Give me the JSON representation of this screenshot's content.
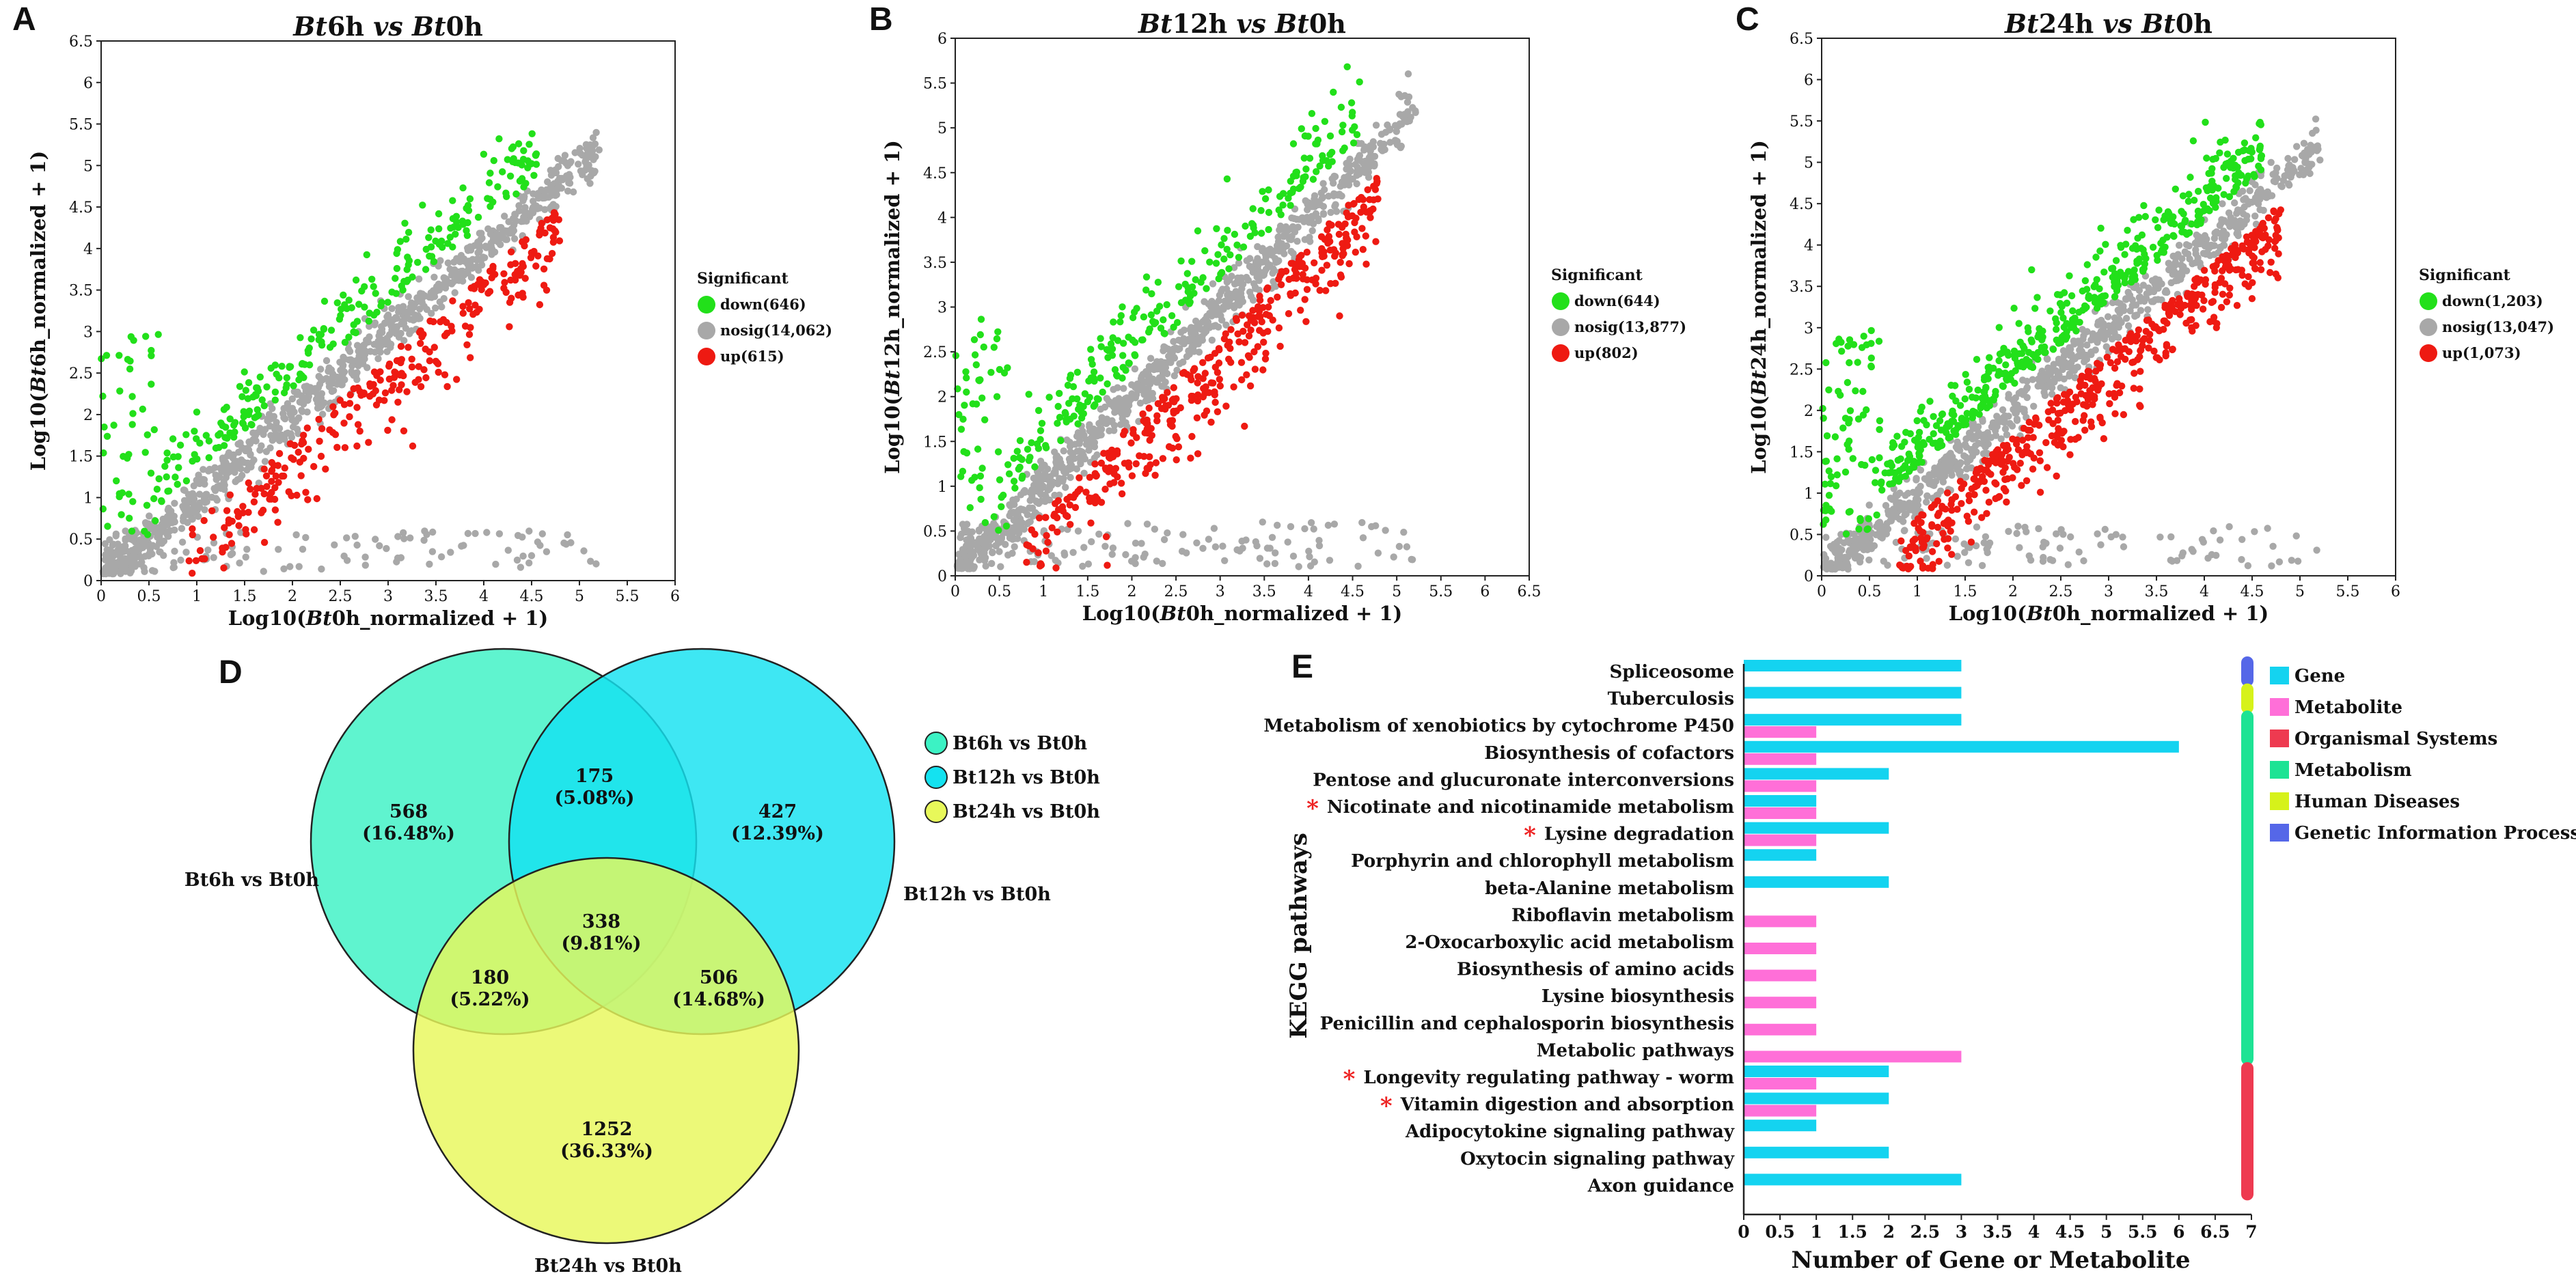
{
  "panels": {
    "A": "A",
    "B": "B",
    "C": "C",
    "D": "D",
    "E": "E"
  },
  "colors": {
    "down": "#22e01a",
    "nosig": "#a8a8a8",
    "up": "#ee1a12",
    "gene": "#14d3f0",
    "metabolite": "#ff6fd8",
    "organismal": "#ee3a50",
    "metabolism": "#1de394",
    "human": "#d6f21a",
    "genetic": "#5567e8",
    "star": "#ee2222"
  },
  "chart_data": [
    {
      "type": "scatter",
      "id": "A",
      "title_parts": [
        "Bt",
        "6h ",
        "vs",
        " Bt",
        "0h"
      ],
      "xlabel_parts": [
        "Log10(",
        "Bt",
        "0h_normalized + 1)"
      ],
      "ylabel_parts": [
        "Log10(",
        "Bt",
        "6h_normalized + 1)"
      ],
      "xlim": [
        0,
        6
      ],
      "ylim": [
        0,
        6.5
      ],
      "xticks": [
        "0",
        "0.5",
        "1",
        "1.5",
        "2",
        "2.5",
        "3",
        "3.5",
        "4",
        "4.5",
        "5",
        "5.5",
        "6"
      ],
      "yticks": [
        "0",
        "0.5",
        "1",
        "1.5",
        "2",
        "2.5",
        "3",
        "3.5",
        "4",
        "4.5",
        "5",
        "5.5",
        "6",
        "6.5"
      ],
      "legend_title": "Significant",
      "legend": [
        {
          "key": "down",
          "label": "down(646)"
        },
        {
          "key": "nosig",
          "label": "nosig(14,062)"
        },
        {
          "key": "up",
          "label": "up(615)"
        }
      ],
      "counts": {
        "down": 646,
        "nosig": 14062,
        "up": 615
      }
    },
    {
      "type": "scatter",
      "id": "B",
      "title_parts": [
        "Bt",
        "12h ",
        "vs",
        " Bt",
        "0h"
      ],
      "xlabel_parts": [
        "Log10(",
        "Bt",
        "0h_normalized + 1)"
      ],
      "ylabel_parts": [
        "Log10(",
        "Bt",
        "12h_normalized + 1)"
      ],
      "xlim": [
        0,
        6.5
      ],
      "ylim": [
        0,
        6
      ],
      "xticks": [
        "0",
        "0.5",
        "1",
        "1.5",
        "2",
        "2.5",
        "3",
        "3.5",
        "4",
        "4.5",
        "5",
        "5.5",
        "6",
        "6.5"
      ],
      "yticks": [
        "0",
        "0.5",
        "1",
        "1.5",
        "2",
        "2.5",
        "3",
        "3.5",
        "4",
        "4.5",
        "5",
        "5.5",
        "6"
      ],
      "legend_title": "Significant",
      "legend": [
        {
          "key": "down",
          "label": "down(644)"
        },
        {
          "key": "nosig",
          "label": "nosig(13,877)"
        },
        {
          "key": "up",
          "label": "up(802)"
        }
      ],
      "counts": {
        "down": 644,
        "nosig": 13877,
        "up": 802
      }
    },
    {
      "type": "scatter",
      "id": "C",
      "title_parts": [
        "Bt",
        "24h ",
        "vs",
        " Bt",
        "0h"
      ],
      "xlabel_parts": [
        "Log10(",
        "Bt",
        "0h_normalized + 1)"
      ],
      "ylabel_parts": [
        "Log10(",
        "Bt",
        "24h_normalized + 1)"
      ],
      "xlim": [
        0,
        6
      ],
      "ylim": [
        0,
        6.5
      ],
      "xticks": [
        "0",
        "0.5",
        "1",
        "1.5",
        "2",
        "2.5",
        "3",
        "3.5",
        "4",
        "4.5",
        "5",
        "5.5",
        "6"
      ],
      "yticks": [
        "0",
        "0.5",
        "1",
        "1.5",
        "2",
        "2.5",
        "3",
        "3.5",
        "4",
        "4.5",
        "5",
        "5.5",
        "6",
        "6.5"
      ],
      "legend_title": "Significant",
      "legend": [
        {
          "key": "down",
          "label": "down(1,203)"
        },
        {
          "key": "nosig",
          "label": "nosig(13,047)"
        },
        {
          "key": "up",
          "label": "up(1,073)"
        }
      ],
      "counts": {
        "down": 1203,
        "nosig": 13047,
        "up": 1073
      }
    },
    {
      "type": "venn",
      "id": "D",
      "sets": [
        {
          "name": "Bt6h vs Bt0h",
          "color": "#3cf2c4"
        },
        {
          "name": "Bt12h vs Bt0h",
          "color": "#14e2f0"
        },
        {
          "name": "Bt24h vs Bt0h",
          "color": "#e8f85a"
        }
      ],
      "regions": [
        {
          "sets": [
            "Bt6h vs Bt0h"
          ],
          "count": "568",
          "pct": "(16.48%)"
        },
        {
          "sets": [
            "Bt6h vs Bt0h",
            "Bt12h vs Bt0h"
          ],
          "count": "175",
          "pct": "(5.08%)"
        },
        {
          "sets": [
            "Bt12h vs Bt0h"
          ],
          "count": "427",
          "pct": "(12.39%)"
        },
        {
          "sets": [
            "Bt6h vs Bt0h",
            "Bt12h vs Bt0h",
            "Bt24h vs Bt0h"
          ],
          "count": "338",
          "pct": "(9.81%)"
        },
        {
          "sets": [
            "Bt6h vs Bt0h",
            "Bt24h vs Bt0h"
          ],
          "count": "180",
          "pct": "(5.22%)"
        },
        {
          "sets": [
            "Bt12h vs Bt0h",
            "Bt24h vs Bt0h"
          ],
          "count": "506",
          "pct": "(14.68%)"
        },
        {
          "sets": [
            "Bt24h vs Bt0h"
          ],
          "count": "1252",
          "pct": "(36.33%)"
        }
      ]
    },
    {
      "type": "bar",
      "id": "E",
      "orientation": "horizontal",
      "ylabel": "KEGG pathways",
      "xlabel": "Number of Gene or Metabolite",
      "xlim": [
        0,
        7
      ],
      "xticks": [
        "0",
        "0.5",
        "1",
        "1.5",
        "2",
        "2.5",
        "3",
        "3.5",
        "4",
        "4.5",
        "5",
        "5.5",
        "6",
        "6.5",
        "7"
      ],
      "categories": [
        "Spliceosome",
        "Tuberculosis",
        "Metabolism of xenobiotics by cytochrome P450",
        "Biosynthesis of cofactors",
        "Pentose and glucuronate interconversions",
        "Nicotinate and nicotinamide metabolism",
        "Lysine degradation",
        "Porphyrin and chlorophyll metabolism",
        "beta-Alanine metabolism",
        "Riboflavin metabolism",
        "2-Oxocarboxylic acid metabolism",
        "Biosynthesis of amino acids",
        "Lysine biosynthesis",
        "Penicillin and cephalosporin biosynthesis",
        "Metabolic pathways",
        "Longevity regulating pathway - worm",
        "Vitamin digestion and absorption",
        "Adipocytokine signaling pathway",
        "Oxytocin signaling pathway",
        "Axon guidance"
      ],
      "starred": [
        false,
        false,
        false,
        false,
        false,
        true,
        true,
        false,
        false,
        false,
        false,
        false,
        false,
        false,
        false,
        true,
        true,
        false,
        false,
        false
      ],
      "series": [
        {
          "name": "Gene",
          "values": [
            3,
            3,
            3,
            6,
            2,
            1,
            2,
            1,
            2,
            0,
            0,
            0,
            0,
            0,
            0,
            2,
            2,
            1,
            2,
            3
          ]
        },
        {
          "name": "Metabolite",
          "values": [
            0,
            0,
            1,
            1,
            1,
            1,
            1,
            0,
            0,
            1,
            1,
            1,
            1,
            1,
            3,
            1,
            1,
            0,
            0,
            0
          ]
        }
      ],
      "class_legend": [
        {
          "name": "Gene",
          "key": "gene"
        },
        {
          "name": "Metabolite",
          "key": "metabolite"
        },
        {
          "name": "Organismal Systems",
          "key": "organismal"
        },
        {
          "name": "Metabolism",
          "key": "metabolism"
        },
        {
          "name": "Human Diseases",
          "key": "human"
        },
        {
          "name": "Genetic Information Processing",
          "key": "genetic"
        }
      ],
      "category_class": [
        "genetic",
        "human",
        "metabolism",
        "metabolism",
        "metabolism",
        "metabolism",
        "metabolism",
        "metabolism",
        "metabolism",
        "metabolism",
        "metabolism",
        "metabolism",
        "metabolism",
        "metabolism",
        "metabolism",
        "organismal",
        "organismal",
        "organismal",
        "organismal",
        "organismal"
      ]
    }
  ]
}
